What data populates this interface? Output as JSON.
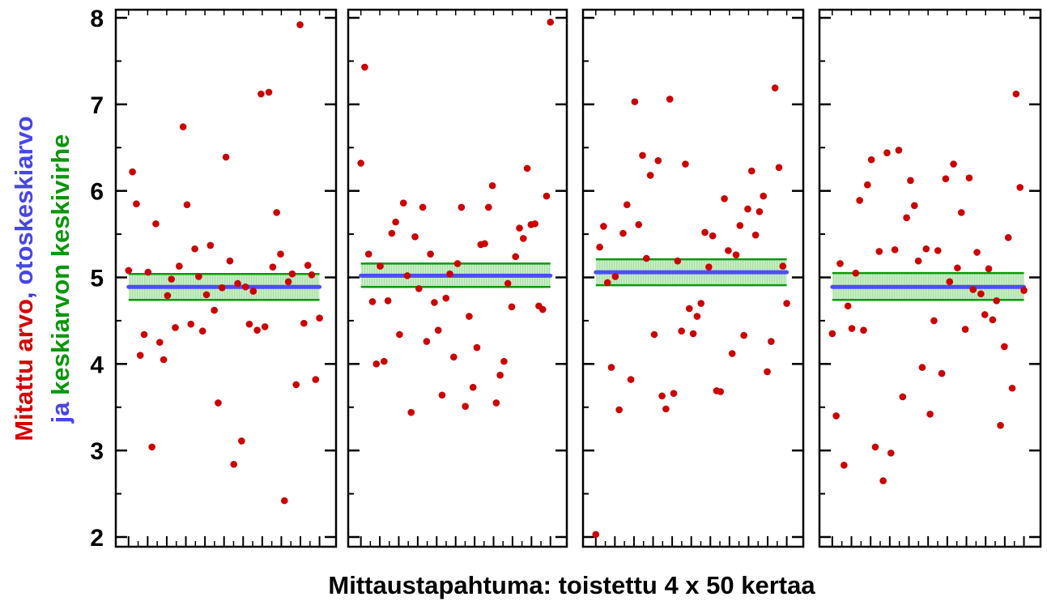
{
  "chart_data": {
    "type": "scatter",
    "xlabel": "Mittaustapahtuma: toistettu 4 x 50 kertaa",
    "ylabel_parts": [
      {
        "line": 1,
        "text": "Mitattu arvo",
        "color": "#d40000"
      },
      {
        "line": 1,
        "text": ", ",
        "color": "#3b3bdc"
      },
      {
        "line": 1,
        "text": "otoskeskiarvo",
        "color": "#4646e6"
      },
      {
        "line": 2,
        "text": "ja ",
        "color": "#4646e6"
      },
      {
        "line": 2,
        "text": "keskiarvon keskivirhe",
        "color": "#0a960a"
      }
    ],
    "ylim": [
      2,
      8
    ],
    "yticks": [
      "2",
      "3",
      "4",
      "5",
      "6",
      "7",
      "8"
    ],
    "colors": {
      "points": "#cc0000",
      "mean": "#4d4dff",
      "se_line": "#0a9a0a",
      "se_fill": "#c8eec8"
    },
    "panels": [
      {
        "mean": 4.89,
        "se_low": 4.74,
        "se_high": 5.04,
        "values": [
          5.08,
          6.22,
          5.85,
          4.1,
          4.34,
          5.06,
          3.04,
          5.62,
          4.25,
          4.05,
          4.79,
          4.98,
          4.42,
          5.13,
          6.74,
          5.84,
          4.46,
          5.33,
          5.01,
          4.38,
          4.8,
          5.37,
          4.62,
          3.55,
          4.88,
          6.39,
          5.19,
          2.84,
          4.93,
          3.11,
          4.89,
          4.46,
          4.84,
          4.39,
          7.12,
          4.43,
          7.14,
          5.12,
          5.75,
          5.27,
          2.42,
          4.95,
          5.04,
          3.76,
          7.92,
          4.47,
          5.14,
          5.03,
          3.82,
          4.53
        ]
      },
      {
        "mean": 5.02,
        "se_low": 4.89,
        "se_high": 5.16,
        "values": [
          6.32,
          7.43,
          5.27,
          4.72,
          4.0,
          5.13,
          4.03,
          4.73,
          5.51,
          5.64,
          4.34,
          5.86,
          5.02,
          3.44,
          5.47,
          4.87,
          5.81,
          4.26,
          5.27,
          4.71,
          4.39,
          3.64,
          4.76,
          5.04,
          4.08,
          5.16,
          5.81,
          3.51,
          4.55,
          3.73,
          4.19,
          5.38,
          5.39,
          5.81,
          6.06,
          3.55,
          3.87,
          4.03,
          4.93,
          4.66,
          5.24,
          5.57,
          5.45,
          6.26,
          5.61,
          5.62,
          4.67,
          4.63,
          5.94,
          7.95
        ]
      },
      {
        "mean": 5.06,
        "se_low": 4.91,
        "se_high": 5.21,
        "values": [
          2.03,
          5.35,
          5.59,
          4.94,
          3.96,
          5.01,
          3.47,
          5.51,
          5.84,
          3.82,
          7.03,
          5.61,
          6.41,
          5.22,
          6.18,
          4.34,
          6.35,
          3.63,
          3.48,
          7.06,
          3.66,
          5.19,
          4.38,
          6.31,
          4.64,
          4.35,
          4.55,
          4.7,
          5.52,
          5.12,
          5.48,
          3.69,
          3.68,
          5.91,
          5.31,
          4.12,
          5.26,
          5.6,
          4.33,
          5.79,
          6.23,
          5.49,
          5.76,
          5.94,
          3.91,
          4.26,
          7.19,
          6.27,
          5.13,
          4.7
        ]
      },
      {
        "mean": 4.89,
        "se_low": 4.74,
        "se_high": 5.05,
        "values": [
          4.35,
          3.4,
          5.16,
          2.83,
          4.67,
          4.41,
          5.05,
          5.89,
          4.39,
          6.07,
          6.36,
          3.04,
          5.3,
          2.65,
          6.44,
          2.97,
          5.32,
          6.47,
          3.62,
          5.69,
          6.12,
          5.83,
          5.19,
          3.96,
          5.33,
          3.42,
          4.5,
          5.31,
          3.89,
          6.14,
          4.95,
          6.31,
          5.11,
          5.75,
          4.4,
          6.15,
          4.86,
          5.29,
          4.81,
          4.57,
          5.1,
          4.51,
          4.73,
          3.29,
          4.2,
          5.46,
          3.72,
          7.12,
          6.04,
          4.85
        ]
      }
    ]
  }
}
